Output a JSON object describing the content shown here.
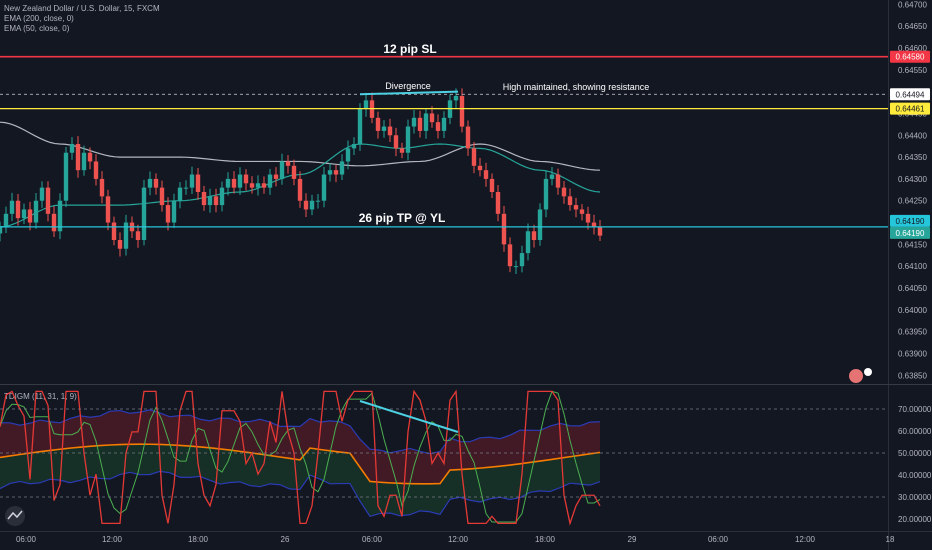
{
  "header": {
    "symbol": "New Zealand Dollar / U.S. Dollar, 15, FXCM",
    "ema200": "EMA (200, close, 0)",
    "ema50": "EMA (50, close, 0)"
  },
  "indicator": {
    "name": "TDIGM (11, 31, 1, 9)"
  },
  "annotations": {
    "sl": "12 pip SL",
    "tp": "26 pip TP @ YL",
    "divergence": "Divergence",
    "resistance": "High maintained, showing resistance"
  },
  "badges": {
    "sl": "0.64580",
    "high": "0.64494",
    "yellow": "0.64461",
    "tp1": "0.64190",
    "tp2": "0.64190"
  },
  "colors": {
    "background": "#131722",
    "up": "#26a69a",
    "down": "#ef5350",
    "sl_line": "#f23645",
    "yellow_line": "#ffeb3b",
    "tp_line": "#26c6da",
    "ema200": "#d1d4dc",
    "ema50": "#26a69a"
  },
  "chart_data": [
    {
      "type": "line",
      "title": "New Zealand Dollar / U.S. Dollar, 15, FXCM",
      "y_axis": {
        "ticks": [
          "0.64700",
          "0.64650",
          "0.64600",
          "0.64550",
          "0.64500",
          "0.64450",
          "0.64400",
          "0.64350",
          "0.64300",
          "0.64250",
          "0.64200",
          "0.64150",
          "0.64100",
          "0.64050",
          "0.64000",
          "0.63950",
          "0.63900",
          "0.63850"
        ],
        "range": [
          0.6383,
          0.6471
        ]
      },
      "x_axis": {
        "ticks": [
          "06:00",
          "12:00",
          "18:00",
          "26",
          "06:00",
          "12:00",
          "18:00",
          "29",
          "06:00",
          "12:00",
          "18"
        ]
      },
      "levels": [
        {
          "name": "12 pip SL",
          "value": 0.6458
        },
        {
          "name": "High",
          "value": 0.64494
        },
        {
          "name": "Yellow line",
          "value": 0.64461
        },
        {
          "name": "26 pip TP @ YL",
          "value": 0.6419
        }
      ],
      "price_close": [
        [
          0,
          0.6419
        ],
        [
          6,
          0.6422
        ],
        [
          12,
          0.6425
        ],
        [
          18,
          0.6421
        ],
        [
          24,
          0.6423
        ],
        [
          30,
          0.642
        ],
        [
          36,
          0.6425
        ],
        [
          42,
          0.6428
        ],
        [
          48,
          0.6422
        ],
        [
          54,
          0.6418
        ],
        [
          60,
          0.6425
        ],
        [
          66,
          0.6436
        ],
        [
          72,
          0.6438
        ],
        [
          78,
          0.6432
        ],
        [
          84,
          0.6436
        ],
        [
          90,
          0.6434
        ],
        [
          96,
          0.643
        ],
        [
          102,
          0.6426
        ],
        [
          108,
          0.642
        ],
        [
          114,
          0.6416
        ],
        [
          120,
          0.6414
        ],
        [
          126,
          0.642
        ],
        [
          132,
          0.6418
        ],
        [
          138,
          0.6416
        ],
        [
          144,
          0.6428
        ],
        [
          150,
          0.643
        ],
        [
          156,
          0.6428
        ],
        [
          162,
          0.6424
        ],
        [
          168,
          0.642
        ],
        [
          174,
          0.6425
        ],
        [
          180,
          0.6428
        ],
        [
          186,
          0.6428
        ],
        [
          192,
          0.6431
        ],
        [
          198,
          0.6427
        ],
        [
          204,
          0.6424
        ],
        [
          210,
          0.6426
        ],
        [
          216,
          0.6424
        ],
        [
          222,
          0.6428
        ],
        [
          228,
          0.643
        ],
        [
          234,
          0.6428
        ],
        [
          240,
          0.6431
        ],
        [
          246,
          0.6429
        ],
        [
          252,
          0.6428
        ],
        [
          258,
          0.6429
        ],
        [
          264,
          0.6428
        ],
        [
          270,
          0.6431
        ],
        [
          276,
          0.643
        ],
        [
          282,
          0.6434
        ],
        [
          288,
          0.6433
        ],
        [
          294,
          0.643
        ],
        [
          300,
          0.6425
        ],
        [
          306,
          0.6423
        ],
        [
          312,
          0.6425
        ],
        [
          318,
          0.6425
        ],
        [
          324,
          0.6431
        ],
        [
          330,
          0.6432
        ],
        [
          336,
          0.6431
        ],
        [
          342,
          0.6434
        ],
        [
          348,
          0.6437
        ],
        [
          354,
          0.6438
        ],
        [
          360,
          0.6446
        ],
        [
          366,
          0.6448
        ],
        [
          372,
          0.6444
        ],
        [
          378,
          0.6441
        ],
        [
          384,
          0.6442
        ],
        [
          390,
          0.644
        ],
        [
          396,
          0.6437
        ],
        [
          402,
          0.6436
        ],
        [
          408,
          0.6442
        ],
        [
          414,
          0.6444
        ],
        [
          420,
          0.6441
        ],
        [
          426,
          0.6445
        ],
        [
          432,
          0.6443
        ],
        [
          438,
          0.6441
        ],
        [
          444,
          0.6444
        ],
        [
          450,
          0.6448
        ],
        [
          456,
          0.6449
        ],
        [
          462,
          0.6442
        ],
        [
          468,
          0.6437
        ],
        [
          474,
          0.6433
        ],
        [
          480,
          0.6432
        ],
        [
          486,
          0.643
        ],
        [
          492,
          0.6427
        ],
        [
          498,
          0.6422
        ],
        [
          504,
          0.6415
        ],
        [
          510,
          0.641
        ],
        [
          516,
          0.641
        ],
        [
          522,
          0.6413
        ],
        [
          528,
          0.6418
        ],
        [
          534,
          0.6416
        ],
        [
          540,
          0.6423
        ],
        [
          546,
          0.643
        ],
        [
          552,
          0.6431
        ],
        [
          558,
          0.6428
        ],
        [
          564,
          0.6426
        ],
        [
          570,
          0.6424
        ],
        [
          576,
          0.6423
        ],
        [
          582,
          0.6422
        ],
        [
          588,
          0.642
        ],
        [
          594,
          0.6419
        ],
        [
          600,
          0.6417
        ]
      ],
      "ema200": [
        [
          0,
          0.6443
        ],
        [
          60,
          0.6438
        ],
        [
          120,
          0.6435
        ],
        [
          180,
          0.6435
        ],
        [
          240,
          0.6434
        ],
        [
          300,
          0.6434
        ],
        [
          360,
          0.6433
        ],
        [
          420,
          0.6434
        ],
        [
          480,
          0.6438
        ],
        [
          540,
          0.6434
        ],
        [
          600,
          0.6432
        ]
      ],
      "ema50": [
        [
          0,
          0.6419
        ],
        [
          60,
          0.6424
        ],
        [
          120,
          0.6424
        ],
        [
          180,
          0.6425
        ],
        [
          240,
          0.6427
        ],
        [
          300,
          0.6431
        ],
        [
          360,
          0.6438
        ],
        [
          400,
          0.6437
        ],
        [
          440,
          0.6438
        ],
        [
          480,
          0.6437
        ],
        [
          540,
          0.6432
        ],
        [
          600,
          0.6427
        ]
      ]
    },
    {
      "type": "line",
      "title": "TDIGM (11, 31, 1, 9)",
      "y_axis": {
        "ticks": [
          "70.00000",
          "60.00000",
          "50.00000",
          "40.00000",
          "30.00000",
          "20.00000"
        ],
        "range": [
          15,
          80
        ]
      },
      "levels": [
        70,
        50,
        30
      ]
    }
  ]
}
